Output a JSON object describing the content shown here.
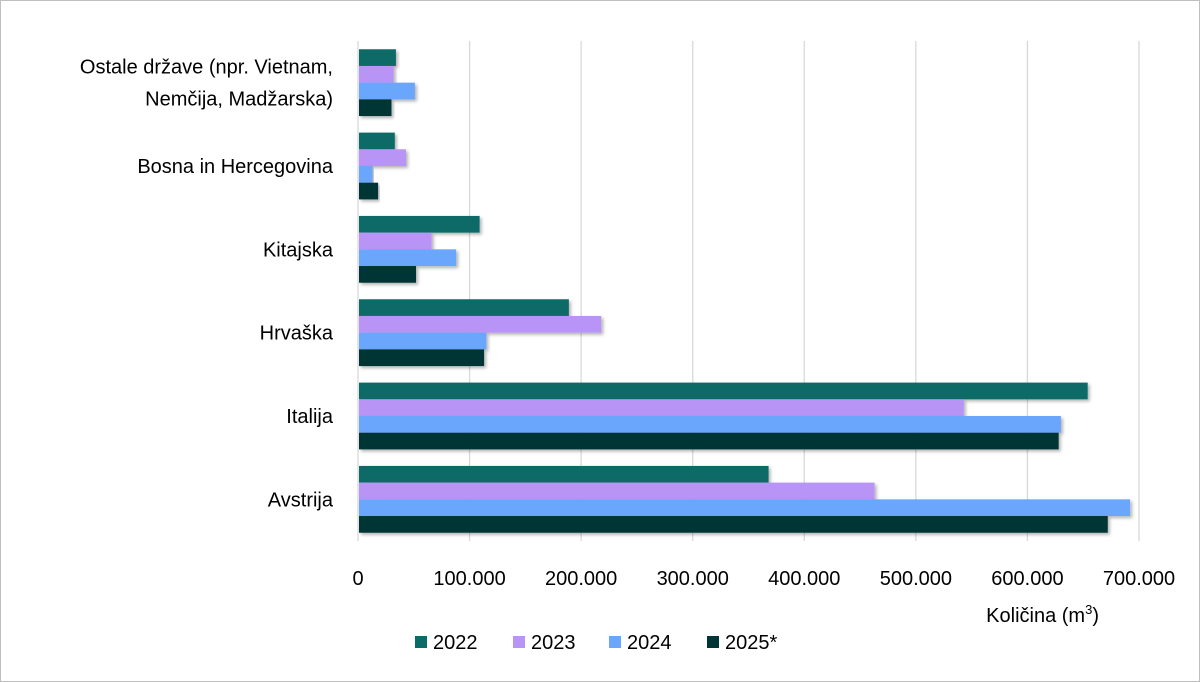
{
  "chart_data": {
    "type": "bar",
    "orientation": "horizontal",
    "categories": [
      "Ostale države (npr. Vietnam, Nemčija, Madžarska)",
      "Bosna in Hercegovina",
      "Kitajska",
      "Hrvaška",
      "Italija",
      "Avstrija"
    ],
    "category_lines": [
      [
        "Ostale države (npr. Vietnam,",
        "Nemčija, Madžarska)"
      ],
      [
        "Bosna in Hercegovina"
      ],
      [
        "Kitajska"
      ],
      [
        "Hrvaška"
      ],
      [
        "Italija"
      ],
      [
        "Avstrija"
      ]
    ],
    "series": [
      {
        "name": "2022",
        "color": "#0b6b66",
        "values": [
          34000,
          33000,
          109000,
          189000,
          654000,
          368000
        ]
      },
      {
        "name": "2023",
        "color": "#b794f6",
        "values": [
          32000,
          43000,
          66000,
          218000,
          543000,
          463000
        ]
      },
      {
        "name": "2024",
        "color": "#6aa6fb",
        "values": [
          51000,
          13000,
          88000,
          115000,
          630000,
          692000
        ]
      },
      {
        "name": "2025*",
        "color": "#023535",
        "values": [
          30000,
          18000,
          52000,
          113000,
          628000,
          672000
        ]
      }
    ],
    "xlim": [
      0,
      700000
    ],
    "xticks": [
      0,
      100000,
      200000,
      300000,
      400000,
      500000,
      600000,
      700000
    ],
    "xtick_labels": [
      "0",
      "100.000",
      "200.000",
      "300.000",
      "400.000",
      "500.000",
      "600.000",
      "700.000"
    ],
    "xlabel": "Količina (m",
    "xlabel_sup": "3",
    "xlabel_end": ")",
    "title": "",
    "grid": "vertical",
    "legend": "bottom"
  }
}
